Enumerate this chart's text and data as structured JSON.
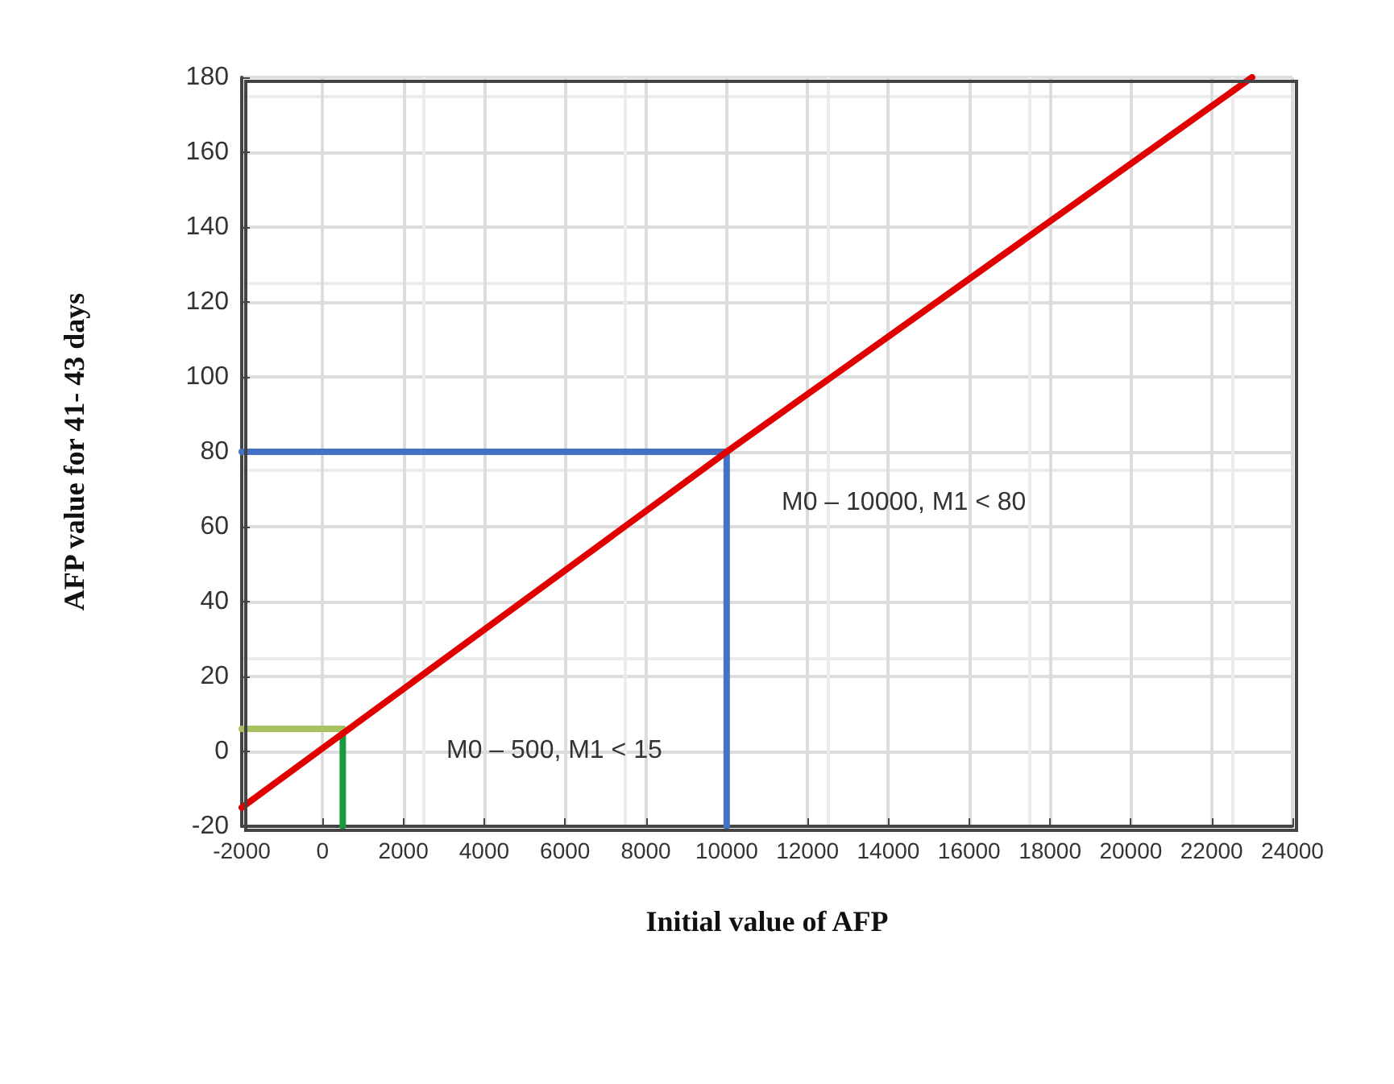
{
  "chart_data": {
    "type": "line",
    "xlabel": "Initial value of AFP",
    "ylabel": "AFP value for 41- 43 days",
    "xlim": [
      -2000,
      24000
    ],
    "xticks": [
      -2000,
      0,
      2000,
      4000,
      6000,
      8000,
      10000,
      12000,
      14000,
      16000,
      18000,
      20000,
      22000,
      24000
    ],
    "ylim": [
      -20,
      180
    ],
    "yticks": [
      -20,
      0,
      20,
      40,
      60,
      80,
      100,
      120,
      140,
      160,
      180
    ],
    "grid": true,
    "marker": "none",
    "series": [
      {
        "color": "#1a9a40",
        "x": [
          500,
          500
        ],
        "values": [
          -20,
          6
        ]
      },
      {
        "color": "#a8c060",
        "x": [
          -2000,
          500
        ],
        "values": [
          6,
          6
        ]
      },
      {
        "color": "#4472c4",
        "x": [
          -2000,
          10000,
          10000
        ],
        "values": [
          80,
          80,
          -20
        ]
      },
      {
        "color": "#e00000",
        "x": [
          -2000,
          10000,
          23000
        ],
        "values": [
          -15,
          80,
          180
        ]
      }
    ],
    "annotations": [
      "M0 – 10000, M1 < 80",
      "M0 – 500, M1 < 15"
    ]
  }
}
